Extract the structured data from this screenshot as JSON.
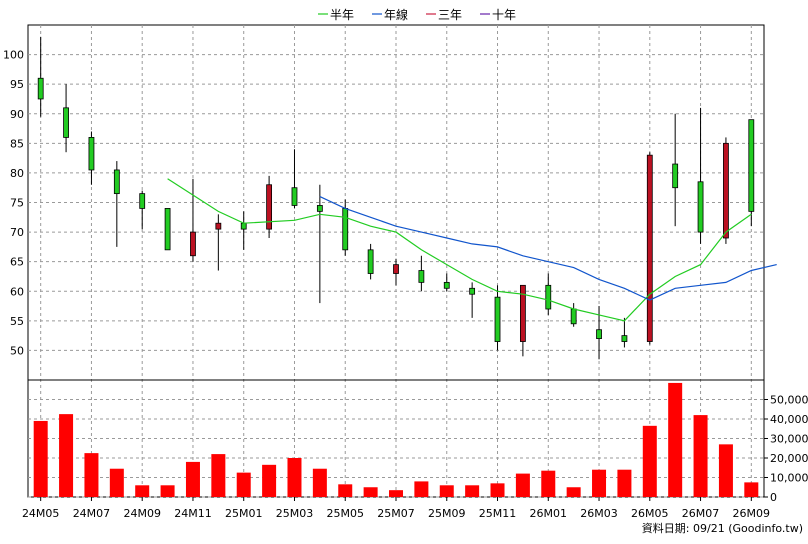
{
  "legend": [
    {
      "label": "半年",
      "color": "#22cc22"
    },
    {
      "label": "年線",
      "color": "#1155cc"
    },
    {
      "label": "三年",
      "color": "#cc2244"
    },
    {
      "label": "十年",
      "color": "#6622aa"
    }
  ],
  "footer_note": "資料日期: 09/21  (Goodinfo.tw)",
  "chart_data": [
    {
      "type": "candlestick",
      "ylim": [
        45,
        105
      ],
      "yticks": [
        50,
        55,
        60,
        65,
        70,
        75,
        80,
        85,
        90,
        95,
        100
      ],
      "grid": true,
      "x_tick_labels": [
        "24M05",
        "24M07",
        "24M09",
        "24M11",
        "25M01",
        "25M03",
        "25M05",
        "25M07",
        "25M09",
        "25M11",
        "26M01",
        "26M03",
        "26M05",
        "26M07",
        "26M09"
      ],
      "up_color": "#22cc22",
      "down_color": "#bb1122",
      "candles": [
        {
          "period": "24M05",
          "open": 92.5,
          "close": 96,
          "high": 103,
          "low": 89.5
        },
        {
          "period": "24M06",
          "open": 86,
          "close": 91,
          "high": 95,
          "low": 83.5
        },
        {
          "period": "24M07",
          "open": 80.5,
          "close": 86,
          "high": 87,
          "low": 78
        },
        {
          "period": "24M08",
          "open": 76.5,
          "close": 80.5,
          "high": 82,
          "low": 67.5
        },
        {
          "period": "24M09",
          "open": 74,
          "close": 76.5,
          "high": 77,
          "low": 70.5
        },
        {
          "period": "24M10",
          "open": 67,
          "close": 74,
          "high": 74,
          "low": 67
        },
        {
          "period": "24M11",
          "open": 70,
          "close": 66,
          "high": 79,
          "low": 65
        },
        {
          "period": "24M12",
          "open": 71.5,
          "close": 70.5,
          "high": 73,
          "low": 63.5
        },
        {
          "period": "25M01",
          "open": 70.5,
          "close": 71.5,
          "high": 73.5,
          "low": 67
        },
        {
          "period": "25M02",
          "open": 78,
          "close": 70.5,
          "high": 79.5,
          "low": 69
        },
        {
          "period": "25M03",
          "open": 74.5,
          "close": 77.5,
          "high": 84,
          "low": 74
        },
        {
          "period": "25M04",
          "open": 73.5,
          "close": 74.5,
          "high": 78,
          "low": 58
        },
        {
          "period": "25M05",
          "open": 67,
          "close": 74,
          "high": 75.5,
          "low": 66
        },
        {
          "period": "25M06",
          "open": 63,
          "close": 67,
          "high": 68,
          "low": 62
        },
        {
          "period": "25M07",
          "open": 64.5,
          "close": 63,
          "high": 65.5,
          "low": 61
        },
        {
          "period": "25M08",
          "open": 61.5,
          "close": 63.5,
          "high": 66,
          "low": 60
        },
        {
          "period": "25M09",
          "open": 60.5,
          "close": 61.5,
          "high": 63,
          "low": 60
        },
        {
          "period": "25M10",
          "open": 59.5,
          "close": 60.5,
          "high": 61.5,
          "low": 55.5
        },
        {
          "period": "25M11",
          "open": 51.5,
          "close": 59,
          "high": 61,
          "low": 50
        },
        {
          "period": "25M12",
          "open": 61,
          "close": 51.5,
          "high": 61,
          "low": 49
        },
        {
          "period": "26M01",
          "open": 57,
          "close": 61,
          "high": 63,
          "low": 56
        },
        {
          "period": "26M02",
          "open": 54.5,
          "close": 57,
          "high": 58,
          "low": 54
        },
        {
          "period": "26M03",
          "open": 52,
          "close": 53.5,
          "high": 57.5,
          "low": 48.5
        },
        {
          "period": "26M04",
          "open": 51.5,
          "close": 52.5,
          "high": 55.5,
          "low": 50.5
        },
        {
          "period": "26M05",
          "open": 83,
          "close": 51.5,
          "high": 83.5,
          "low": 51
        },
        {
          "period": "26M06",
          "open": 77.5,
          "close": 81.5,
          "high": 90,
          "low": 71
        },
        {
          "period": "26M07",
          "open": 70,
          "close": 78.5,
          "high": 91,
          "low": 68
        },
        {
          "period": "26M08",
          "open": 85,
          "close": 69,
          "high": 86,
          "low": 68
        },
        {
          "period": "26M09",
          "open": 73.5,
          "close": 89,
          "high": 89,
          "low": 71
        }
      ],
      "series": [
        {
          "name": "半年",
          "color": "#22cc22",
          "points": [
            {
              "i": 5,
              "v": 79
            },
            {
              "i": 7,
              "v": 73.5
            },
            {
              "i": 8,
              "v": 71.5
            },
            {
              "i": 10,
              "v": 72
            },
            {
              "i": 11,
              "v": 73
            },
            {
              "i": 12,
              "v": 72.5
            },
            {
              "i": 13,
              "v": 71
            },
            {
              "i": 14,
              "v": 70
            },
            {
              "i": 15,
              "v": 67
            },
            {
              "i": 16,
              "v": 64.5
            },
            {
              "i": 17,
              "v": 62
            },
            {
              "i": 18,
              "v": 60
            },
            {
              "i": 19,
              "v": 59.5
            },
            {
              "i": 20,
              "v": 58.5
            },
            {
              "i": 21,
              "v": 57
            },
            {
              "i": 22,
              "v": 56
            },
            {
              "i": 23,
              "v": 55
            },
            {
              "i": 24,
              "v": 59.5
            },
            {
              "i": 25,
              "v": 62.5
            },
            {
              "i": 26,
              "v": 64.5
            },
            {
              "i": 27,
              "v": 70
            },
            {
              "i": 28,
              "v": 73
            }
          ]
        },
        {
          "name": "年線",
          "color": "#1155cc",
          "points": [
            {
              "i": 11,
              "v": 76
            },
            {
              "i": 12,
              "v": 74
            },
            {
              "i": 13,
              "v": 72.5
            },
            {
              "i": 14,
              "v": 71
            },
            {
              "i": 15,
              "v": 70
            },
            {
              "i": 16,
              "v": 69
            },
            {
              "i": 17,
              "v": 68
            },
            {
              "i": 18,
              "v": 67.5
            },
            {
              "i": 19,
              "v": 66
            },
            {
              "i": 20,
              "v": 65
            },
            {
              "i": 21,
              "v": 64
            },
            {
              "i": 22,
              "v": 62
            },
            {
              "i": 23,
              "v": 60.5
            },
            {
              "i": 24,
              "v": 58.5
            },
            {
              "i": 25,
              "v": 60.5
            },
            {
              "i": 26,
              "v": 61
            },
            {
              "i": 27,
              "v": 61.5
            },
            {
              "i": 28,
              "v": 63.5
            },
            {
              "i": 29,
              "v": 64.5
            }
          ]
        }
      ]
    },
    {
      "type": "bar",
      "ylim": [
        0,
        60000
      ],
      "yticks": [
        0,
        10000,
        20000,
        30000,
        40000,
        50000
      ],
      "ytick_labels": [
        "0",
        "10,000",
        "20,000",
        "30,000",
        "40,000",
        "50,000"
      ],
      "bar_color": "#ff0000",
      "values": [
        39000,
        42500,
        22500,
        14500,
        6000,
        6000,
        18000,
        22000,
        12500,
        16500,
        20000,
        14500,
        6500,
        5000,
        3500,
        8000,
        6000,
        6000,
        7000,
        12000,
        13500,
        5000,
        14000,
        14000,
        36500,
        58500,
        42000,
        27000,
        7500
      ]
    }
  ]
}
